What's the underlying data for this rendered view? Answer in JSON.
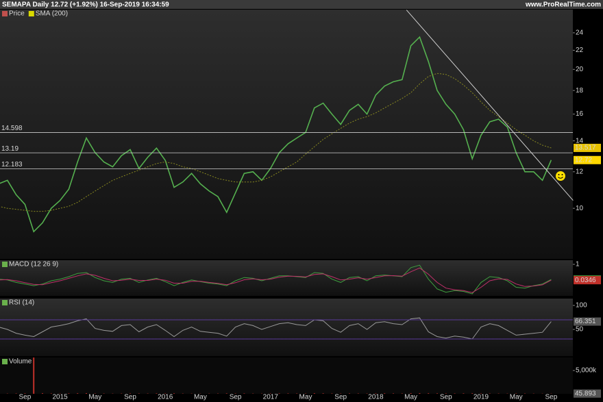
{
  "header": {
    "title": "SEMAPA Daily 12.72 (+1.92%) 16-Sep-2019 16:34:59",
    "source": "www.ProRealTime.com"
  },
  "chart_data": [
    {
      "type": "line",
      "log_scale": true,
      "categories": [
        null,
        null,
        null,
        "Sep",
        null,
        null,
        null,
        "2015",
        null,
        null,
        null,
        "May",
        null,
        null,
        null,
        "Sep",
        null,
        null,
        null,
        "2016",
        null,
        null,
        null,
        "May",
        null,
        null,
        null,
        "Sep",
        null,
        null,
        null,
        "2017",
        null,
        null,
        null,
        "May",
        null,
        null,
        null,
        "Sep",
        null,
        null,
        null,
        "2018",
        null,
        null,
        null,
        "May",
        null,
        null,
        null,
        "Sep",
        null,
        null,
        null,
        "2019",
        null,
        null,
        null,
        "May",
        null,
        null,
        null,
        "Sep"
      ],
      "series": [
        {
          "name": "Price",
          "color": "#55b04f",
          "legend_color": "#c0504d",
          "box_color": "#ffd800",
          "values": [
            11.3,
            11.5,
            10.7,
            10.2,
            8.9,
            9.3,
            10.0,
            10.4,
            11.0,
            12.6,
            14.2,
            13.2,
            12.6,
            12.3,
            13.0,
            13.4,
            12.2,
            12.9,
            13.5,
            12.7,
            11.1,
            11.4,
            11.9,
            11.3,
            10.9,
            10.6,
            9.8,
            10.8,
            11.9,
            12.0,
            11.5,
            12.2,
            13.2,
            13.8,
            14.2,
            14.6,
            16.5,
            16.9,
            16.0,
            15.2,
            16.3,
            16.8,
            16.0,
            17.6,
            18.4,
            18.8,
            19.0,
            22.5,
            23.5,
            20.8,
            18.0,
            16.8,
            16.0,
            14.8,
            12.8,
            14.4,
            15.4,
            15.6,
            15.0,
            13.2,
            12.0,
            12.0,
            11.5,
            12.72
          ]
        },
        {
          "name": "SMA (200)",
          "color": "#8a8a20",
          "legend_color": "#d8d800",
          "box_color": "#e8c200",
          "dashed": true,
          "values": [
            10.1,
            10.0,
            9.95,
            9.9,
            9.85,
            9.85,
            9.9,
            10.0,
            10.1,
            10.3,
            10.6,
            10.9,
            11.2,
            11.5,
            11.7,
            11.9,
            12.1,
            12.3,
            12.5,
            12.6,
            12.5,
            12.3,
            12.2,
            12.0,
            11.8,
            11.6,
            11.5,
            11.4,
            11.4,
            11.4,
            11.5,
            11.7,
            12.0,
            12.3,
            12.6,
            13.1,
            13.6,
            14.1,
            14.5,
            14.9,
            15.3,
            15.6,
            15.8,
            16.1,
            16.5,
            16.9,
            17.3,
            17.8,
            18.6,
            19.3,
            19.6,
            19.5,
            19.1,
            18.5,
            17.8,
            17.0,
            16.3,
            15.8,
            15.3,
            14.8,
            14.4,
            14.0,
            13.7,
            13.517
          ]
        }
      ],
      "ylim": [
        7.77,
        26.95
      ],
      "yticks": [
        10,
        12,
        14,
        16,
        18,
        20,
        22,
        24
      ],
      "horizontal_lines": [
        14.598,
        13.19,
        12.183
      ],
      "trendline": {
        "from": [
          46.5,
          26.9
        ],
        "to": [
          65.5,
          10.4
        ],
        "color": "#d0d0d0"
      }
    },
    {
      "type": "line",
      "title": "MACD (12 26 9)",
      "series": [
        {
          "color": "#3f9f3f",
          "box_color": "#3f9f3f",
          "values": [
            0.1,
            0.05,
            -0.1,
            -0.2,
            -0.3,
            -0.2,
            0.0,
            0.1,
            0.25,
            0.45,
            0.5,
            0.2,
            0.0,
            -0.1,
            0.1,
            0.15,
            -0.1,
            0.05,
            0.15,
            -0.05,
            -0.3,
            -0.1,
            0.05,
            -0.05,
            -0.15,
            -0.2,
            -0.3,
            0.0,
            0.2,
            0.15,
            0.0,
            0.15,
            0.3,
            0.3,
            0.25,
            0.2,
            0.5,
            0.45,
            0.1,
            -0.1,
            0.2,
            0.25,
            0.0,
            0.3,
            0.35,
            0.3,
            0.25,
            0.8,
            0.95,
            0.1,
            -0.5,
            -0.7,
            -0.6,
            -0.65,
            -0.8,
            -0.1,
            0.25,
            0.2,
            0.0,
            -0.4,
            -0.45,
            -0.3,
            -0.2,
            0.0771
          ]
        },
        {
          "color": "#c0306a",
          "box_color": "#c0302a",
          "values": [
            0.05,
            0.07,
            0.0,
            -0.12,
            -0.22,
            -0.24,
            -0.12,
            0.0,
            0.15,
            0.3,
            0.42,
            0.33,
            0.15,
            0.0,
            0.03,
            0.1,
            0.02,
            0.02,
            0.1,
            0.03,
            -0.15,
            -0.15,
            -0.03,
            -0.03,
            -0.1,
            -0.16,
            -0.24,
            -0.12,
            0.06,
            0.12,
            0.06,
            0.1,
            0.22,
            0.28,
            0.27,
            0.23,
            0.38,
            0.42,
            0.25,
            0.05,
            0.1,
            0.18,
            0.1,
            0.2,
            0.3,
            0.31,
            0.28,
            0.55,
            0.78,
            0.4,
            -0.1,
            -0.45,
            -0.55,
            -0.6,
            -0.72,
            -0.4,
            0.0,
            0.12,
            0.08,
            -0.2,
            -0.35,
            -0.32,
            -0.25,
            0.0346
          ]
        }
      ],
      "ylim": [
        -0.92,
        1.25
      ],
      "yticks": [
        1
      ]
    },
    {
      "type": "line",
      "title": "RSI (14)",
      "levels": [
        70,
        30
      ],
      "level_color": "#5a3a9a",
      "series": [
        {
          "color": "#9a9a9a",
          "box_color": "#555555",
          "values": [
            55,
            50,
            42,
            38,
            35,
            45,
            55,
            58,
            62,
            68,
            72,
            52,
            48,
            46,
            58,
            60,
            45,
            55,
            60,
            48,
            35,
            48,
            55,
            46,
            44,
            42,
            36,
            55,
            62,
            58,
            50,
            56,
            62,
            64,
            60,
            58,
            70,
            68,
            52,
            44,
            58,
            62,
            50,
            64,
            66,
            62,
            60,
            72,
            74,
            45,
            35,
            32,
            36,
            34,
            30,
            55,
            62,
            58,
            48,
            38,
            40,
            42,
            44,
            66.351
          ]
        }
      ],
      "ylim": [
        -5.7,
        114.3
      ],
      "yticks": [
        100,
        50
      ]
    },
    {
      "type": "bar",
      "title": "Volume",
      "color": "#c0302a",
      "box_color": "#555555",
      "values": [
        60,
        50,
        70,
        90,
        7800,
        120,
        80,
        60,
        90,
        110,
        130,
        70,
        60,
        50,
        60,
        80,
        70,
        60,
        90,
        80,
        100,
        60,
        50,
        40,
        50,
        60,
        90,
        70,
        80,
        60,
        50,
        70,
        90,
        80,
        70,
        60,
        120,
        100,
        70,
        60,
        80,
        70,
        60,
        90,
        100,
        80,
        70,
        130,
        140,
        110,
        90,
        80,
        70,
        90,
        110,
        80,
        70,
        60,
        50,
        70,
        60,
        50,
        40,
        45.893
      ],
      "ylim": [
        0,
        7800
      ],
      "yticks": [
        {
          "value": 5000,
          "label": "5,000k"
        }
      ]
    }
  ]
}
